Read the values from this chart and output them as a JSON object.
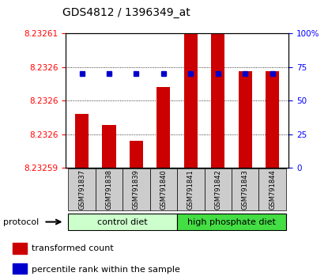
{
  "title": "GDS4812 / 1396349_at",
  "samples": [
    "GSM791837",
    "GSM791838",
    "GSM791839",
    "GSM791840",
    "GSM791841",
    "GSM791842",
    "GSM791843",
    "GSM791844"
  ],
  "bar_values": [
    8.2326,
    8.232598,
    8.232595,
    8.232605,
    8.232615,
    8.23262,
    8.232608,
    8.232608
  ],
  "percentile_values": [
    70,
    70,
    70,
    70,
    70,
    70,
    70,
    70
  ],
  "ymin": 8.23259,
  "ymax": 8.232615,
  "right_yticks": [
    0,
    25,
    50,
    75,
    100
  ],
  "bar_color": "#cc0000",
  "dot_color": "#0000cc",
  "control_label": "control diet",
  "high_label": "high phosphate diet",
  "protocol_label": "protocol",
  "legend_bar_label": "transformed count",
  "legend_dot_label": "percentile rank within the sample",
  "control_bg": "#ccffcc",
  "high_bg": "#44dd44",
  "sample_bg": "#cccccc",
  "title_fontsize": 10,
  "tick_fontsize": 7.5
}
